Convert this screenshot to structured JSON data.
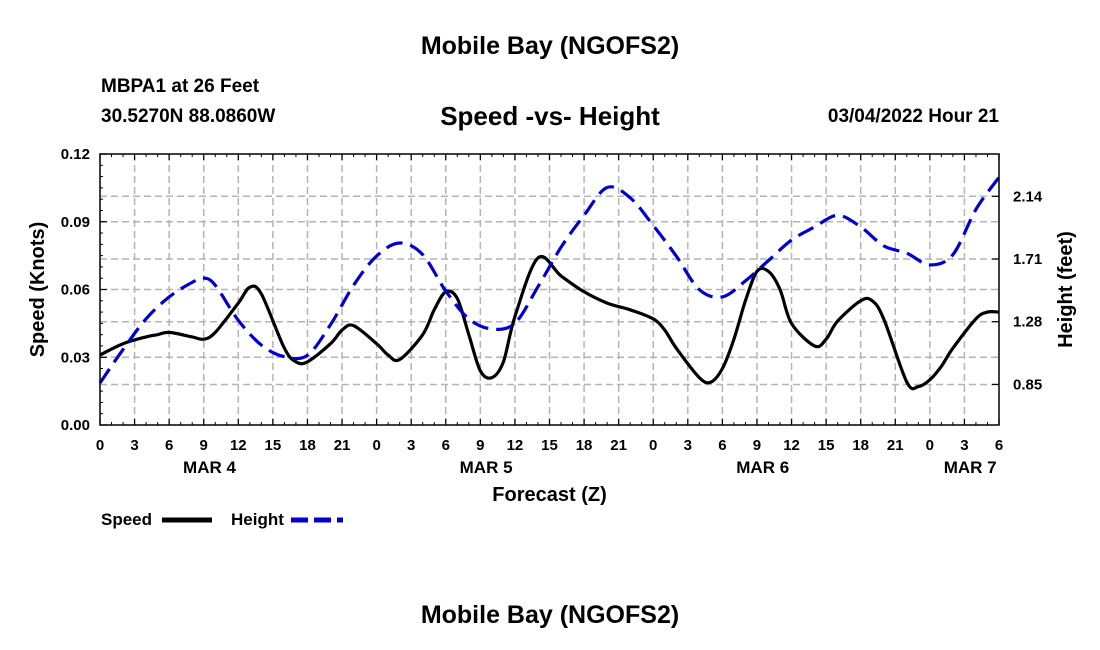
{
  "page": {
    "title": "Mobile Bay (NGOFS2)",
    "footer_title": "Mobile Bay (NGOFS2)",
    "station_line": "MBPA1 at 26 Feet",
    "coords_line": "30.5270N  88.0860W",
    "subtitle": "Speed -vs- Height",
    "datetime": "03/04/2022 Hour 21"
  },
  "chart_data": {
    "type": "line",
    "title": "Speed -vs- Height",
    "xlabel": "Forecast (Z)",
    "ylabel": "Speed (Knots)",
    "y2label": "Height (feet)",
    "xlim": [
      0,
      78
    ],
    "ylim": [
      0,
      0.12
    ],
    "y2lim": [
      0.572,
      2.43
    ],
    "xticks": [
      0,
      3,
      6,
      9,
      12,
      15,
      18,
      21,
      24,
      27,
      30,
      33,
      36,
      39,
      42,
      45,
      48,
      51,
      54,
      57,
      60,
      63,
      66,
      69,
      72,
      75,
      78
    ],
    "xtick_labels": [
      "0",
      "3",
      "6",
      "9",
      "12",
      "15",
      "18",
      "21",
      "0",
      "3",
      "6",
      "9",
      "12",
      "15",
      "18",
      "21",
      "0",
      "3",
      "6",
      "9",
      "12",
      "15",
      "18",
      "21",
      "0",
      "3",
      "6"
    ],
    "yticks": [
      0.0,
      0.03,
      0.06,
      0.09,
      0.12
    ],
    "ytick_labels": [
      "0.00",
      "0.03",
      "0.06",
      "0.09",
      "0.12"
    ],
    "y2ticks": [
      0.85,
      1.28,
      1.71,
      2.14
    ],
    "y2tick_labels": [
      "0.85",
      "1.28",
      "1.71",
      "2.14"
    ],
    "day_labels": [
      {
        "x": 9.5,
        "label": "MAR 4"
      },
      {
        "x": 33.5,
        "label": "MAR 5"
      },
      {
        "x": 57.5,
        "label": "MAR 6"
      },
      {
        "x": 75.5,
        "label": "MAR 7"
      }
    ],
    "grid": true,
    "legend": {
      "placement": "bottom-left",
      "speed_label": "Speed",
      "height_label": "Height"
    },
    "series": [
      {
        "name": "Speed",
        "axis": "left",
        "color": "#000000",
        "style": "solid",
        "x": [
          0,
          2,
          4,
          5,
          6,
          8,
          9,
          10,
          12,
          13,
          14,
          16,
          17,
          18,
          20,
          21,
          22,
          24,
          25,
          26,
          28,
          29,
          30,
          31,
          32,
          33,
          34,
          35,
          36,
          38,
          40,
          42,
          44,
          46,
          48,
          49,
          50,
          52,
          53,
          54,
          55,
          56,
          57,
          58,
          59,
          60,
          62,
          63,
          64,
          66,
          67,
          68,
          70,
          71,
          72,
          73,
          74,
          76,
          77,
          78
        ],
        "values": [
          0.031,
          0.036,
          0.039,
          0.04,
          0.041,
          0.039,
          0.038,
          0.041,
          0.054,
          0.061,
          0.058,
          0.034,
          0.028,
          0.028,
          0.036,
          0.042,
          0.044,
          0.036,
          0.031,
          0.029,
          0.04,
          0.051,
          0.059,
          0.056,
          0.04,
          0.024,
          0.021,
          0.028,
          0.048,
          0.074,
          0.066,
          0.059,
          0.054,
          0.051,
          0.047,
          0.042,
          0.034,
          0.021,
          0.019,
          0.025,
          0.038,
          0.055,
          0.068,
          0.068,
          0.06,
          0.045,
          0.035,
          0.038,
          0.046,
          0.055,
          0.055,
          0.047,
          0.019,
          0.017,
          0.02,
          0.026,
          0.034,
          0.047,
          0.05,
          0.05
        ]
      },
      {
        "name": "Height",
        "axis": "right",
        "color": "#0000cc",
        "style": "dashed",
        "x": [
          0,
          2,
          4,
          6,
          8,
          9,
          10,
          12,
          14,
          16,
          18,
          20,
          22,
          24,
          26,
          28,
          30,
          32,
          34,
          36,
          38,
          40,
          42,
          44,
          46,
          48,
          50,
          52,
          54,
          56,
          58,
          60,
          62,
          64,
          66,
          68,
          70,
          72,
          74,
          76,
          78
        ],
        "values": [
          0.86,
          1.09,
          1.3,
          1.45,
          1.55,
          1.58,
          1.53,
          1.29,
          1.12,
          1.04,
          1.05,
          1.26,
          1.53,
          1.73,
          1.82,
          1.74,
          1.49,
          1.3,
          1.23,
          1.27,
          1.52,
          1.79,
          2.01,
          2.2,
          2.13,
          1.94,
          1.73,
          1.5,
          1.45,
          1.56,
          1.7,
          1.84,
          1.93,
          2.01,
          1.93,
          1.8,
          1.75,
          1.67,
          1.74,
          2.05,
          2.27
        ]
      }
    ]
  }
}
